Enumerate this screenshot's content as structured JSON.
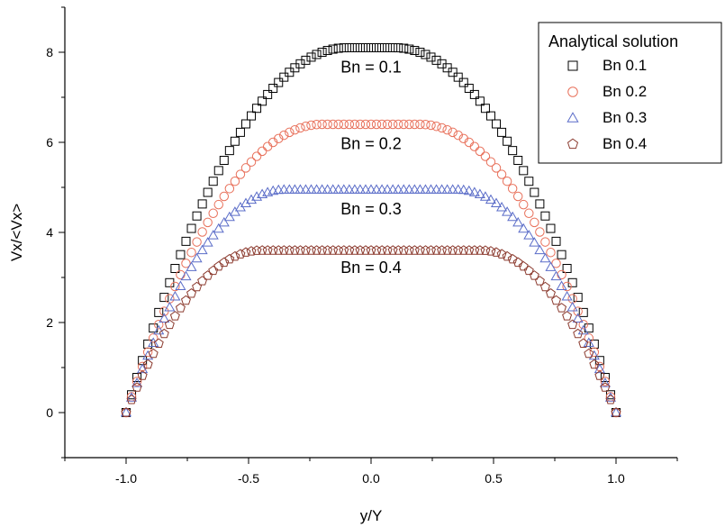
{
  "chart_data": {
    "type": "scatter",
    "title": "",
    "xlabel": "y/Y",
    "ylabel": "Vx/<Vx>",
    "xlim": [
      -1.25,
      1.25
    ],
    "ylim": [
      -1.0,
      9.0
    ],
    "xticks": [
      -1.0,
      -0.5,
      0.0,
      0.5,
      1.0
    ],
    "xtick_labels": [
      "-1.0",
      "-0.5",
      "0.0",
      "0.5",
      "1.0"
    ],
    "yticks": [
      0,
      2,
      4,
      6,
      8
    ],
    "ytick_labels": [
      "0",
      "2",
      "4",
      "6",
      "8"
    ],
    "grid": false,
    "legend": {
      "title": "Analytical solution",
      "placement": "top-right"
    },
    "series": [
      {
        "name": "Bn 0.1",
        "marker": "square",
        "color": "#000000",
        "plateau_half_width": 0.1,
        "peak": 8.1,
        "annotation": "Bn = 0.1",
        "x": [
          -1.0,
          -0.9,
          -0.8,
          -0.7,
          -0.6,
          -0.5,
          -0.4,
          -0.3,
          -0.2,
          -0.1,
          0.0,
          0.1,
          0.2,
          0.3,
          0.4,
          0.5,
          0.6,
          0.7,
          0.8,
          0.9,
          1.0
        ],
        "y": [
          0.0,
          1.54,
          2.92,
          4.13,
          5.18,
          6.06,
          6.78,
          7.33,
          7.72,
          7.95,
          8.1,
          7.95,
          7.72,
          7.33,
          6.78,
          6.06,
          5.18,
          4.13,
          2.92,
          1.54,
          0.0
        ]
      },
      {
        "name": "Bn 0.2",
        "marker": "circle",
        "color": "#e8705a",
        "plateau_half_width": 0.2,
        "peak": 6.4,
        "annotation": "Bn = 0.2",
        "x": [
          -1.0,
          -0.9,
          -0.8,
          -0.7,
          -0.6,
          -0.5,
          -0.4,
          -0.3,
          -0.2,
          0.0,
          0.2,
          0.3,
          0.4,
          0.5,
          0.6,
          0.7,
          0.8,
          0.9,
          1.0
        ],
        "y": [
          0.0,
          1.54,
          2.83,
          3.85,
          4.62,
          5.5,
          6.0,
          6.3,
          6.4,
          6.4,
          6.4,
          6.3,
          6.0,
          5.5,
          4.62,
          3.85,
          2.83,
          1.54,
          0.0
        ]
      },
      {
        "name": "Bn 0.3",
        "marker": "triangle",
        "color": "#5a6cc8",
        "plateau_half_width": 0.35,
        "peak": 4.95,
        "annotation": "Bn = 0.3",
        "x": [
          -1.0,
          -0.9,
          -0.8,
          -0.7,
          -0.6,
          -0.5,
          -0.35,
          0.0,
          0.35,
          0.5,
          0.6,
          0.7,
          0.8,
          0.9,
          1.0
        ],
        "y": [
          0.0,
          1.3,
          2.4,
          3.3,
          4.0,
          4.55,
          4.95,
          4.95,
          4.95,
          4.55,
          4.0,
          3.3,
          2.4,
          1.3,
          0.0
        ]
      },
      {
        "name": "Bn 0.4",
        "marker": "pentagon",
        "color": "#8b3a2e",
        "plateau_half_width": 0.45,
        "peak": 3.6,
        "annotation": "Bn = 0.4",
        "x": [
          -1.0,
          -0.9,
          -0.8,
          -0.7,
          -0.6,
          -0.45,
          0.0,
          0.45,
          0.6,
          0.7,
          0.8,
          0.9,
          1.0
        ],
        "y": [
          0.0,
          1.1,
          2.0,
          2.75,
          3.3,
          3.6,
          3.6,
          3.6,
          3.3,
          2.75,
          2.0,
          1.1,
          0.0
        ]
      }
    ]
  }
}
